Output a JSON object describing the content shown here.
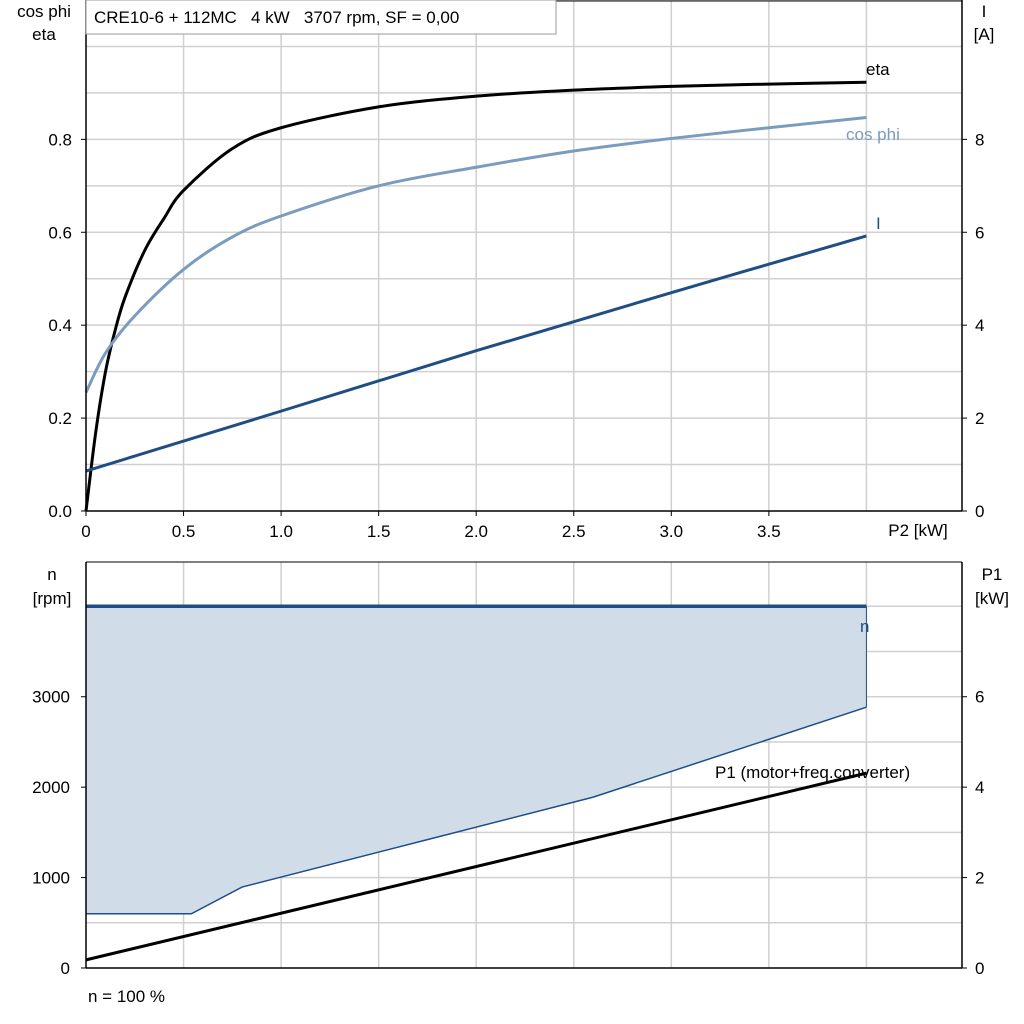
{
  "chart_data": [
    {
      "type": "line",
      "title": "CRE10-6 + 112MC   4 kW   3707 rpm, SF = 0,00",
      "xlabel": "P2 [kW]",
      "ylabel_left": [
        "cos phi",
        "eta"
      ],
      "ylabel_right": [
        "I",
        "[A]"
      ],
      "xlim": [
        0,
        4.5
      ],
      "ylim_left": [
        0,
        1.1
      ],
      "ylim_right": [
        0,
        11
      ],
      "grid": true,
      "x_ticks": [
        "0",
        "0.5",
        "1.0",
        "1.5",
        "2.0",
        "2.5",
        "3.0",
        "3.5"
      ],
      "y_ticks_left": [
        "0.0",
        "0.2",
        "0.4",
        "0.6",
        "0.8"
      ],
      "y_ticks_right": [
        "0",
        "2",
        "4",
        "6",
        "8"
      ],
      "series": [
        {
          "name": "eta",
          "axis": "left",
          "color": "#000000",
          "x": [
            0,
            0.05,
            0.1,
            0.15,
            0.2,
            0.3,
            0.4,
            0.5,
            0.75,
            1.0,
            1.5,
            2.0,
            2.5,
            3.0,
            3.5,
            4.0
          ],
          "y": [
            0,
            0.17,
            0.3,
            0.39,
            0.46,
            0.56,
            0.63,
            0.69,
            0.78,
            0.825,
            0.87,
            0.893,
            0.906,
            0.914,
            0.919,
            0.923
          ]
        },
        {
          "name": "cos phi",
          "axis": "left",
          "color": "#7a9cbf",
          "x": [
            0,
            0.1,
            0.25,
            0.5,
            0.75,
            1.0,
            1.5,
            2.0,
            2.5,
            3.0,
            3.5,
            4.0
          ],
          "y": [
            0.255,
            0.34,
            0.42,
            0.52,
            0.59,
            0.635,
            0.7,
            0.74,
            0.775,
            0.802,
            0.825,
            0.847
          ]
        },
        {
          "name": "I",
          "axis": "right",
          "color": "#1f4e85",
          "x": [
            0,
            1.0,
            2.0,
            3.0,
            4.0
          ],
          "y": [
            0.86,
            2.15,
            3.45,
            4.7,
            5.92
          ]
        }
      ]
    },
    {
      "type": "area",
      "xlim": [
        0,
        4.5
      ],
      "ylabel_left": [
        "n",
        "[rpm]"
      ],
      "ylabel_right": [
        "P1",
        "[kW]"
      ],
      "ylim_left": [
        0,
        4490
      ],
      "ylim_right": [
        0,
        8.98
      ],
      "grid": true,
      "y_ticks_left": [
        "0",
        "1000",
        "2000",
        "3000"
      ],
      "y_ticks_right": [
        "0",
        "2",
        "4",
        "6"
      ],
      "footnote": "n = 100 %",
      "series": [
        {
          "name": "n",
          "axis": "left",
          "color": "#1f4e85",
          "x": [
            0,
            4.0
          ],
          "y": [
            4000,
            4000
          ]
        },
        {
          "name": "n range lower limit",
          "axis": "left",
          "color": "#1f4e85",
          "fill": "#d0dce8",
          "x": [
            0,
            0.54,
            0.8,
            1.8,
            2.6,
            4.0
          ],
          "y": [
            600,
            600,
            895,
            1447,
            1890,
            2884
          ]
        },
        {
          "name": "P1 (motor+freq.converter)",
          "axis": "right",
          "color": "#000000",
          "x": [
            0,
            4.0
          ],
          "y": [
            0.18,
            4.31
          ]
        }
      ]
    }
  ]
}
